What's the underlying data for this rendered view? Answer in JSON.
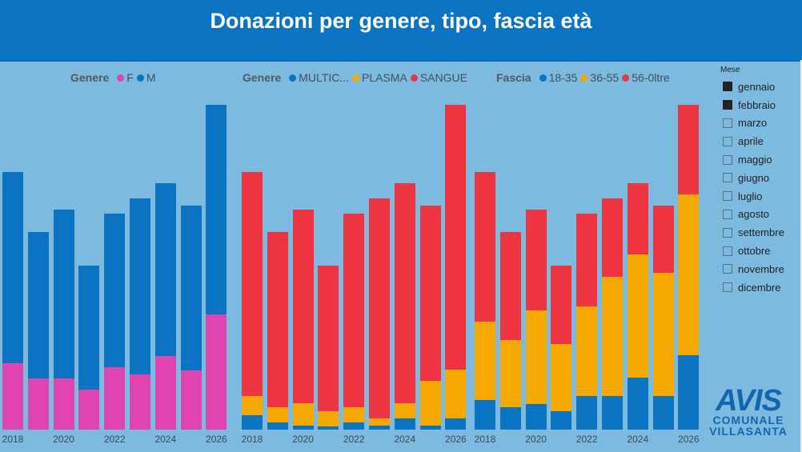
{
  "title": "Donazioni per genere, tipo, fascia età",
  "colors": {
    "blue": "#0a74c2",
    "pink": "#e044b0",
    "orange": "#f5a800",
    "red": "#ee3440"
  },
  "chart_data": [
    {
      "type": "bar",
      "stacked": true,
      "legend_title": "Genere",
      "categories": [
        "2018",
        "2019",
        "2020",
        "2021",
        "2022",
        "2023",
        "2024",
        "2025",
        "2026"
      ],
      "tick_labels": [
        "2018",
        "2020",
        "2022",
        "2024",
        "2026"
      ],
      "series": [
        {
          "name": "F",
          "color": "#e044b0",
          "values": [
            83,
            64,
            64,
            50,
            78,
            69,
            92,
            74,
            144
          ]
        },
        {
          "name": "M",
          "color": "#0a74c2",
          "values": [
            239,
            183,
            211,
            155,
            192,
            220,
            216,
            206,
            262
          ]
        }
      ]
    },
    {
      "type": "bar",
      "stacked": true,
      "legend_title": "Genere",
      "categories": [
        "2018",
        "2019",
        "2020",
        "2021",
        "2022",
        "2023",
        "2024",
        "2025",
        "2026"
      ],
      "tick_labels": [
        "2018",
        "2020",
        "2022",
        "2024",
        "2026"
      ],
      "series": [
        {
          "name": "MULTIC...",
          "color": "#0a74c2",
          "values": [
            18,
            9,
            5,
            4,
            9,
            5,
            14,
            5,
            14
          ]
        },
        {
          "name": "PLASMA",
          "color": "#f5a800",
          "values": [
            24,
            19,
            28,
            19,
            19,
            9,
            19,
            56,
            61
          ]
        },
        {
          "name": "SANGUE",
          "color": "#ee3440",
          "values": [
            280,
            219,
            242,
            182,
            242,
            275,
            275,
            219,
            331
          ]
        }
      ]
    },
    {
      "type": "bar",
      "stacked": true,
      "legend_title": "Fascia",
      "categories": [
        "2018",
        "2019",
        "2020",
        "2021",
        "2022",
        "2023",
        "2024",
        "2025",
        "2026"
      ],
      "tick_labels": [
        "2018",
        "2020",
        "2022",
        "2024",
        "2026"
      ],
      "series": [
        {
          "name": "18-35",
          "color": "#0a74c2",
          "values": [
            37,
            28,
            32,
            23,
            42,
            42,
            65,
            42,
            93
          ]
        },
        {
          "name": "36-55",
          "color": "#f5a800",
          "values": [
            98,
            84,
            117,
            84,
            112,
            149,
            154,
            154,
            201
          ]
        },
        {
          "name": "56-0ltre",
          "color": "#ee3440",
          "values": [
            187,
            135,
            126,
            98,
            116,
            98,
            89,
            84,
            112
          ]
        }
      ]
    }
  ],
  "slicer": {
    "title": "Mese",
    "items": [
      {
        "label": "gennaio",
        "checked": true
      },
      {
        "label": "febbraio",
        "checked": true
      },
      {
        "label": "marzo",
        "checked": false
      },
      {
        "label": "aprile",
        "checked": false
      },
      {
        "label": "maggio",
        "checked": false
      },
      {
        "label": "giugno",
        "checked": false
      },
      {
        "label": "luglio",
        "checked": false
      },
      {
        "label": "agosto",
        "checked": false
      },
      {
        "label": "settembre",
        "checked": false
      },
      {
        "label": "ottobre",
        "checked": false
      },
      {
        "label": "novembre",
        "checked": false
      },
      {
        "label": "dicembre",
        "checked": false
      }
    ]
  },
  "logo": {
    "main": "AVIS",
    "line1": "COMUNALE",
    "line2": "VILLASANTA"
  }
}
